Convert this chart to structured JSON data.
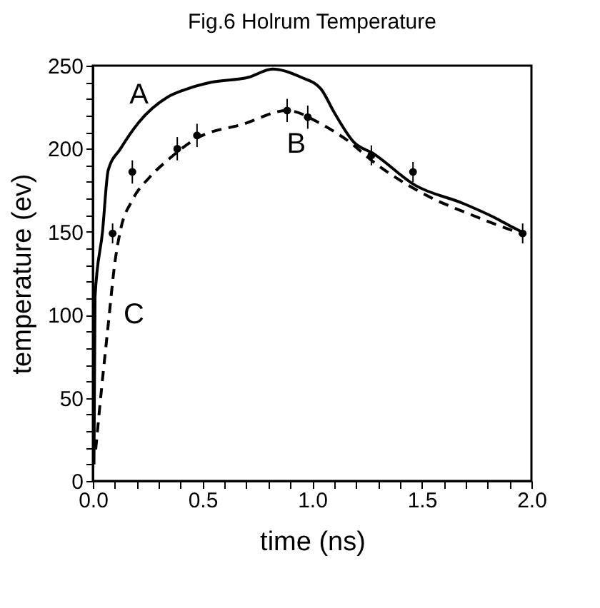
{
  "chart_data": {
    "type": "line",
    "title": "Fig.6 Holrum Temperature",
    "xlabel": "time (ns)",
    "ylabel": "temperature (ev)",
    "xlim": [
      0,
      2
    ],
    "ylim": [
      0,
      250
    ],
    "xticks": [
      {
        "value": 0,
        "label": "0.0"
      },
      {
        "value": 0.1,
        "label": null
      },
      {
        "value": 0.2,
        "label": null
      },
      {
        "value": 0.3,
        "label": null
      },
      {
        "value": 0.4,
        "label": null
      },
      {
        "value": 0.5,
        "label": "0.5"
      },
      {
        "value": 0.6,
        "label": null
      },
      {
        "value": 0.7,
        "label": null
      },
      {
        "value": 0.8,
        "label": null
      },
      {
        "value": 0.9,
        "label": null
      },
      {
        "value": 1,
        "label": "1.0"
      },
      {
        "value": 1.1,
        "label": null
      },
      {
        "value": 1.2,
        "label": null
      },
      {
        "value": 1.3,
        "label": null
      },
      {
        "value": 1.4,
        "label": null
      },
      {
        "value": 1.5,
        "label": "1.5"
      },
      {
        "value": 1.6,
        "label": null
      },
      {
        "value": 1.7,
        "label": null
      },
      {
        "value": 1.8,
        "label": null
      },
      {
        "value": 1.9,
        "label": null
      },
      {
        "value": 2,
        "label": "2.0"
      }
    ],
    "yticks": [
      0,
      {
        "value": 10,
        "label": null
      },
      {
        "value": 20,
        "label": null
      },
      {
        "value": 30,
        "label": null
      },
      {
        "value": 40,
        "label": null
      },
      50,
      {
        "value": 60,
        "label": null
      },
      {
        "value": 70,
        "label": null
      },
      {
        "value": 80,
        "label": null
      },
      {
        "value": 90,
        "label": null
      },
      100,
      {
        "value": 110,
        "label": null
      },
      {
        "value": 120,
        "label": null
      },
      {
        "value": 130,
        "label": null
      },
      {
        "value": 140,
        "label": null
      },
      150,
      {
        "value": 160,
        "label": null
      },
      {
        "value": 170,
        "label": null
      },
      {
        "value": 180,
        "label": null
      },
      {
        "value": 190,
        "label": null
      },
      200,
      {
        "value": 210,
        "label": null
      },
      {
        "value": 220,
        "label": null
      },
      {
        "value": 230,
        "label": null
      },
      {
        "value": 240,
        "label": null
      },
      250
    ],
    "grid": false,
    "series": [
      {
        "color": "#000000",
        "line_style": "solid",
        "x": [
          0.005,
          0.01,
          0.044,
          0.07,
          0.126,
          0.21,
          0.34,
          0.43,
          0.54,
          0.71,
          0.82,
          0.95,
          1.04,
          1.1,
          1.19,
          1.28,
          1.47,
          1.69,
          1.84,
          1.91,
          1.97
        ],
        "values": [
          10,
          111,
          150,
          187,
          200,
          216,
          231,
          236,
          240,
          243,
          248,
          243,
          236,
          222,
          204,
          197,
          178,
          167,
          158,
          153,
          149
        ]
      },
      {
        "color": "#000000",
        "line_style": "dashed",
        "x": [
          0.013,
          0.04,
          0.07,
          0.1,
          0.126,
          0.18,
          0.26,
          0.34,
          0.47,
          0.69,
          0.886,
          1.04,
          1.15,
          1.3,
          1.52,
          1.73,
          1.95
        ],
        "values": [
          19,
          56,
          94,
          131,
          151,
          169,
          183,
          193,
          206,
          215,
          223,
          215,
          206,
          190,
          172,
          160,
          149
        ]
      },
      {
        "type": "scatter",
        "color": "#000000",
        "marker": "circle",
        "x": [
          0.09,
          0.18,
          0.385,
          0.475,
          0.886,
          0.98,
          1.27,
          1.46,
          1.96
        ],
        "values": [
          149,
          186,
          200,
          208,
          223,
          219,
          196,
          186,
          149
        ],
        "errors": [
          6,
          7,
          7,
          7,
          7,
          7,
          6,
          6,
          6
        ]
      }
    ],
    "annotations": [
      {
        "text": "A",
        "x": 0.21,
        "y": 216
      },
      {
        "text": "B",
        "x": 0.98,
        "y": 219
      },
      {
        "text": "C",
        "x": 0.07,
        "y": 94
      }
    ]
  }
}
